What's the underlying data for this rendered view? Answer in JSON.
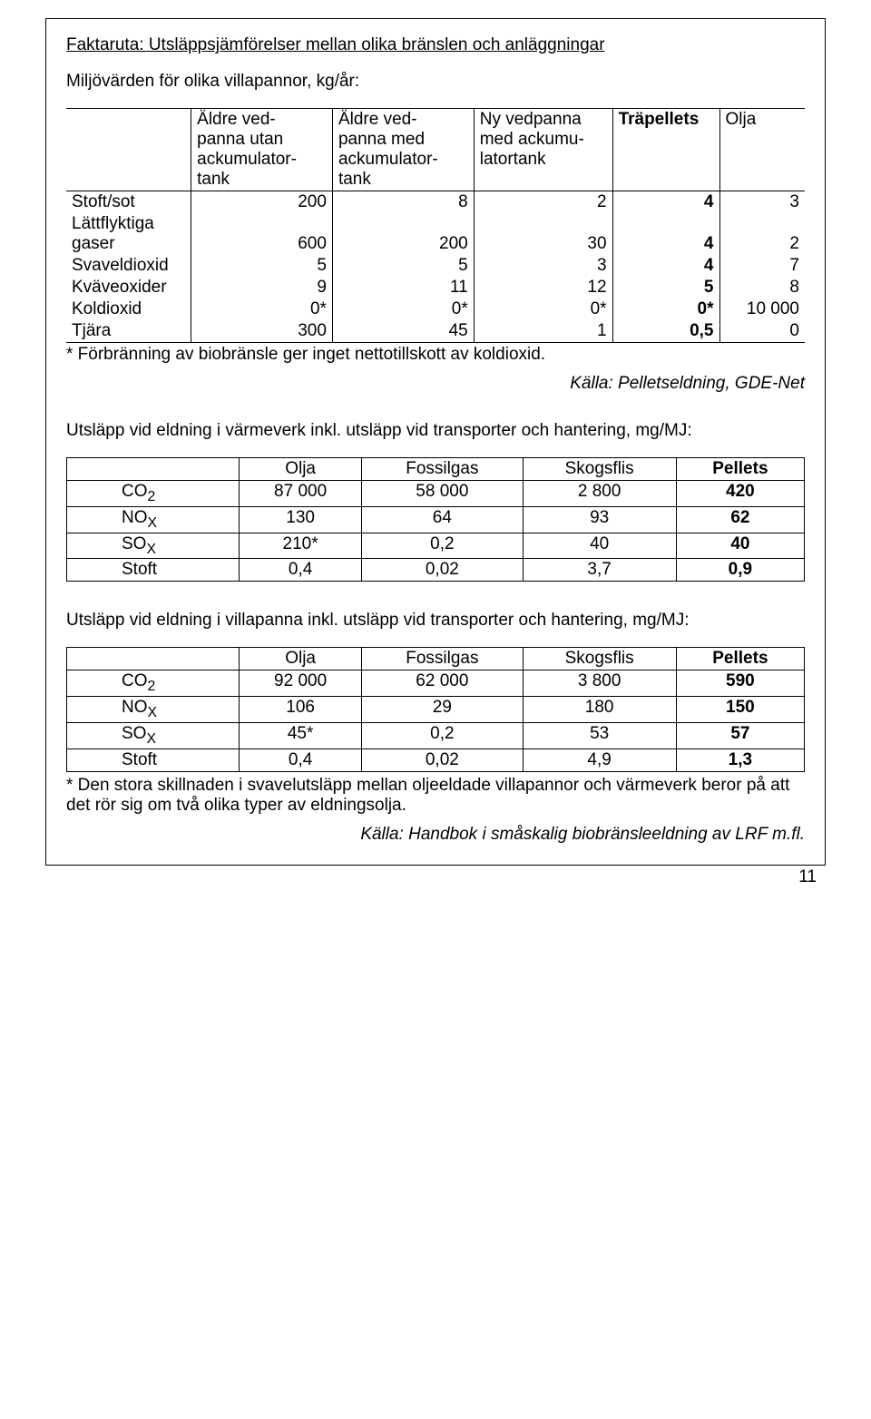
{
  "title": "Faktaruta: Utsläppsjämförelser mellan olika bränslen och anläggningar",
  "subhead1": "Miljövärden för olika villapannor, kg/år:",
  "table1": {
    "headers": [
      "",
      "Äldre ved-panna utan ackumulator-tank",
      "Äldre ved-panna med ackumulator-tank",
      "Ny vedpanna med ackumu-latortank",
      "Träpellets",
      "Olja"
    ],
    "rows": [
      {
        "label": "Stoft/sot",
        "v": [
          "200",
          "8",
          "2",
          "4",
          "3"
        ]
      },
      {
        "label": "Lättflyktiga gaser",
        "v": [
          "600",
          "200",
          "30",
          "4",
          "2"
        ],
        "multiline": true
      },
      {
        "label": "Svaveldioxid",
        "v": [
          "5",
          "5",
          "3",
          "4",
          "7"
        ]
      },
      {
        "label": "Kväveoxider",
        "v": [
          "9",
          "11",
          "12",
          "5",
          "8"
        ]
      },
      {
        "label": "Koldioxid",
        "v": [
          "0*",
          "0*",
          "0*",
          "0*",
          "10 000"
        ]
      },
      {
        "label": "Tjära",
        "v": [
          "300",
          "45",
          "1",
          "0,5",
          "0"
        ]
      }
    ]
  },
  "footnote1": "* Förbränning av biobränsle ger inget nettotillskott av koldioxid.",
  "source1": "Källa: Pelletseldning, GDE-Net",
  "subhead2": "Utsläpp vid eldning i värmeverk inkl. utsläpp vid transporter och hantering, mg/MJ:",
  "table2": {
    "headers": [
      "",
      "Olja",
      "Fossilgas",
      "Skogsflis",
      "Pellets"
    ],
    "rows": [
      {
        "label": "CO",
        "sub": "2",
        "v": [
          "87 000",
          "58 000",
          "2 800",
          "420"
        ]
      },
      {
        "label": "NO",
        "sub": "X",
        "v": [
          "130",
          "64",
          "93",
          "62"
        ]
      },
      {
        "label": "SO",
        "sub": "X",
        "v": [
          "210*",
          "0,2",
          "40",
          "40"
        ]
      },
      {
        "label": "Stoft",
        "sub": "",
        "v": [
          "0,4",
          "0,02",
          "3,7",
          "0,9"
        ]
      }
    ]
  },
  "subhead3": "Utsläpp vid eldning i villapanna inkl. utsläpp vid transporter och hantering, mg/MJ:",
  "table3": {
    "headers": [
      "",
      "Olja",
      "Fossilgas",
      "Skogsflis",
      "Pellets"
    ],
    "rows": [
      {
        "label": "CO",
        "sub": "2",
        "v": [
          "92 000",
          "62 000",
          "3 800",
          "590"
        ]
      },
      {
        "label": "NO",
        "sub": "X",
        "v": [
          "106",
          "29",
          "180",
          "150"
        ]
      },
      {
        "label": "SO",
        "sub": "X",
        "v": [
          "45*",
          "0,2",
          "53",
          "57"
        ]
      },
      {
        "label": "Stoft",
        "sub": "",
        "v": [
          "0,4",
          "0,02",
          "4,9",
          "1,3"
        ]
      }
    ]
  },
  "footnote3a": "* Den stora skillnaden i svavelutsläpp mellan oljeeldade villapannor och värmeverk beror på att det rör sig om två olika typer av eldningsolja.",
  "source3": "Källa: Handbok i småskalig biobränsleeldning av LRF m.fl.",
  "pagenum": "11"
}
